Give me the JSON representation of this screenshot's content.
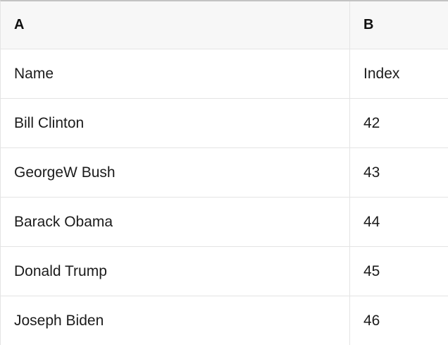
{
  "table": {
    "columns": [
      {
        "label": "A"
      },
      {
        "label": "B"
      }
    ],
    "rows": [
      {
        "a": "Name",
        "b": "Index"
      },
      {
        "a": "Bill Clinton",
        "b": "42"
      },
      {
        "a": "GeorgeW Bush",
        "b": "43"
      },
      {
        "a": "Barack Obama",
        "b": "44"
      },
      {
        "a": "Donald Trump",
        "b": "45"
      },
      {
        "a": "Joseph Biden",
        "b": "46"
      }
    ],
    "colors": {
      "header_background": "#f7f7f7",
      "row_background": "#ffffff",
      "grid_line": "#e4e4e4",
      "top_border": "#c3c3c3",
      "text": "#1b1b1b"
    }
  }
}
